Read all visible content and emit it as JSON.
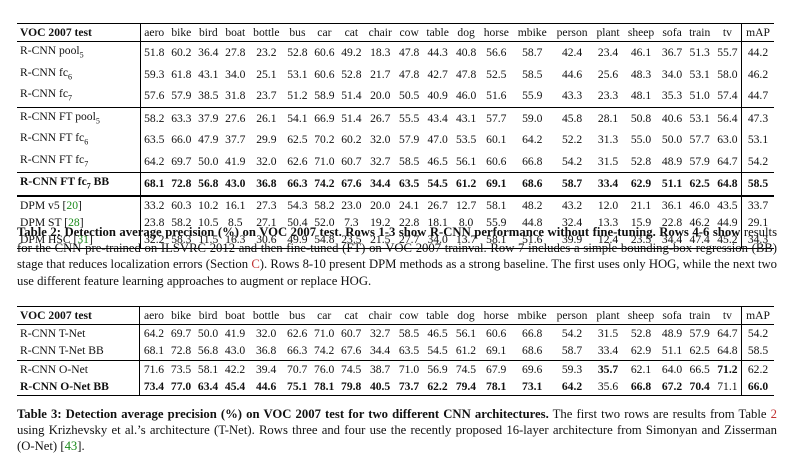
{
  "table1": {
    "headers": [
      "VOC 2007 test",
      "aero",
      "bike",
      "bird",
      "boat",
      "bottle",
      "bus",
      "car",
      "cat",
      "chair",
      "cow",
      "table",
      "dog",
      "horse",
      "mbike",
      "person",
      "plant",
      "sheep",
      "sofa",
      "train",
      "tv",
      "mAP"
    ],
    "rows": [
      {
        "label": "R-CNN pool",
        "sub": "5",
        "values": [
          "51.8",
          "60.2",
          "36.4",
          "27.8",
          "23.2",
          "52.8",
          "60.6",
          "49.2",
          "18.3",
          "47.8",
          "44.3",
          "40.8",
          "56.6",
          "58.7",
          "42.4",
          "23.4",
          "46.1",
          "36.7",
          "51.3",
          "55.7",
          "44.2"
        ]
      },
      {
        "label": "R-CNN fc",
        "sub": "6",
        "values": [
          "59.3",
          "61.8",
          "43.1",
          "34.0",
          "25.1",
          "53.1",
          "60.6",
          "52.8",
          "21.7",
          "47.8",
          "42.7",
          "47.8",
          "52.5",
          "58.5",
          "44.6",
          "25.6",
          "48.3",
          "34.0",
          "53.1",
          "58.0",
          "46.2"
        ]
      },
      {
        "label": "R-CNN fc",
        "sub": "7",
        "values": [
          "57.6",
          "57.9",
          "38.5",
          "31.8",
          "23.7",
          "51.2",
          "58.9",
          "51.4",
          "20.0",
          "50.5",
          "40.9",
          "46.0",
          "51.6",
          "55.9",
          "43.3",
          "23.3",
          "48.1",
          "35.3",
          "51.0",
          "57.4",
          "44.7"
        ]
      },
      {
        "label": "R-CNN FT pool",
        "sub": "5",
        "values": [
          "58.2",
          "63.3",
          "37.9",
          "27.6",
          "26.1",
          "54.1",
          "66.9",
          "51.4",
          "26.7",
          "55.5",
          "43.4",
          "43.1",
          "57.7",
          "59.0",
          "45.8",
          "28.1",
          "50.8",
          "40.6",
          "53.1",
          "56.4",
          "47.3"
        ]
      },
      {
        "label": "R-CNN FT fc",
        "sub": "6",
        "values": [
          "63.5",
          "66.0",
          "47.9",
          "37.7",
          "29.9",
          "62.5",
          "70.2",
          "60.2",
          "32.0",
          "57.9",
          "47.0",
          "53.5",
          "60.1",
          "64.2",
          "52.2",
          "31.3",
          "55.0",
          "50.0",
          "57.7",
          "63.0",
          "53.1"
        ]
      },
      {
        "label": "R-CNN FT fc",
        "sub": "7",
        "values": [
          "64.2",
          "69.7",
          "50.0",
          "41.9",
          "32.0",
          "62.6",
          "71.0",
          "60.7",
          "32.7",
          "58.5",
          "46.5",
          "56.1",
          "60.6",
          "66.8",
          "54.2",
          "31.5",
          "52.8",
          "48.9",
          "57.9",
          "64.7",
          "54.2"
        ]
      },
      {
        "label": "R-CNN FT fc",
        "sub": "7",
        "suffix": " BB",
        "values": [
          "68.1",
          "72.8",
          "56.8",
          "43.0",
          "36.8",
          "66.3",
          "74.2",
          "67.6",
          "34.4",
          "63.5",
          "54.5",
          "61.2",
          "69.1",
          "68.6",
          "58.7",
          "33.4",
          "62.9",
          "51.1",
          "62.5",
          "64.8",
          "58.5"
        ]
      },
      {
        "label": "DPM v5 [",
        "ref": "20",
        "close": "]",
        "values": [
          "33.2",
          "60.3",
          "10.2",
          "16.1",
          "27.3",
          "54.3",
          "58.2",
          "23.0",
          "20.0",
          "24.1",
          "26.7",
          "12.7",
          "58.1",
          "48.2",
          "43.2",
          "12.0",
          "21.1",
          "36.1",
          "46.0",
          "43.5",
          "33.7"
        ]
      },
      {
        "label": "DPM ST [",
        "ref": "28",
        "close": "]",
        "values": [
          "23.8",
          "58.2",
          "10.5",
          "8.5",
          "27.1",
          "50.4",
          "52.0",
          "7.3",
          "19.2",
          "22.8",
          "18.1",
          "8.0",
          "55.9",
          "44.8",
          "32.4",
          "13.3",
          "15.9",
          "22.8",
          "46.2",
          "44.9",
          "29.1"
        ]
      },
      {
        "label": "DPM HSC [",
        "ref": "31",
        "close": "]",
        "values": [
          "32.2",
          "58.3",
          "11.5",
          "16.3",
          "30.6",
          "49.9",
          "54.8",
          "23.5",
          "21.5",
          "27.7",
          "34.0",
          "13.7",
          "58.1",
          "51.6",
          "39.9",
          "12.4",
          "23.5",
          "34.4",
          "47.4",
          "45.2",
          "34.3"
        ]
      }
    ],
    "caption": {
      "label": "Table 2: Detection average precision (%) on VOC 2007 test.",
      "text_bold": " Rows 1-3 show R-CNN performance without fine-tuning. Rows 4-6 show",
      "text1": "results for the CNN pre-trained on ILSVRC 2012 and then fine-tuned (FT) on VOC 2007 trainval. Row 7 includes a simple bounding-box regression (BB) stage that reduces localization errors (Section ",
      "section_ref": "C",
      "text2": "). Rows 8-10 present DPM methods as a strong baseline. The first uses only HOG, while the next two use different feature learning approaches to augment or replace HOG."
    }
  },
  "table2": {
    "headers": [
      "VOC 2007 test",
      "aero",
      "bike",
      "bird",
      "boat",
      "bottle",
      "bus",
      "car",
      "cat",
      "chair",
      "cow",
      "table",
      "dog",
      "horse",
      "mbike",
      "person",
      "plant",
      "sheep",
      "sofa",
      "train",
      "tv",
      "mAP"
    ],
    "rows": [
      {
        "label": "R-CNN T-Net",
        "values": [
          "64.2",
          "69.7",
          "50.0",
          "41.9",
          "32.0",
          "62.6",
          "71.0",
          "60.7",
          "32.7",
          "58.5",
          "46.5",
          "56.1",
          "60.6",
          "66.8",
          "54.2",
          "31.5",
          "52.8",
          "48.9",
          "57.9",
          "64.7",
          "54.2"
        ]
      },
      {
        "label": "R-CNN T-Net BB",
        "values": [
          "68.1",
          "72.8",
          "56.8",
          "43.0",
          "36.8",
          "66.3",
          "74.2",
          "67.6",
          "34.4",
          "63.5",
          "54.5",
          "61.2",
          "69.1",
          "68.6",
          "58.7",
          "33.4",
          "62.9",
          "51.1",
          "62.5",
          "64.8",
          "58.5"
        ]
      },
      {
        "label": "R-CNN O-Net",
        "values": [
          "71.6",
          "73.5",
          "58.1",
          "42.2",
          "39.4",
          "70.7",
          "76.0",
          "74.5",
          "38.7",
          "71.0",
          "56.9",
          "74.5",
          "67.9",
          "69.6",
          "59.3",
          "35.7",
          "62.1",
          "64.0",
          "66.5",
          "71.2",
          "62.2"
        ]
      },
      {
        "label": "R-CNN O-Net BB",
        "values": [
          "73.4",
          "77.0",
          "63.4",
          "45.4",
          "44.6",
          "75.1",
          "78.1",
          "79.8",
          "40.5",
          "73.7",
          "62.2",
          "79.4",
          "78.1",
          "73.1",
          "64.2",
          "35.6",
          "66.8",
          "67.2",
          "70.4",
          "71.1",
          "66.0"
        ]
      }
    ],
    "caption": {
      "label": "Table 3: Detection average precision (%) on VOC 2007 test for two different CNN architectures.",
      "text1": " The first two rows are results from Table ",
      "table_ref": "2",
      "text2": " using Krizhevsky et al.’s architecture (T-Net). Rows three and four use the recently proposed 16-layer architecture from Simonyan and Zisserman (O-Net) [",
      "ref": "43",
      "text3": "]."
    }
  }
}
